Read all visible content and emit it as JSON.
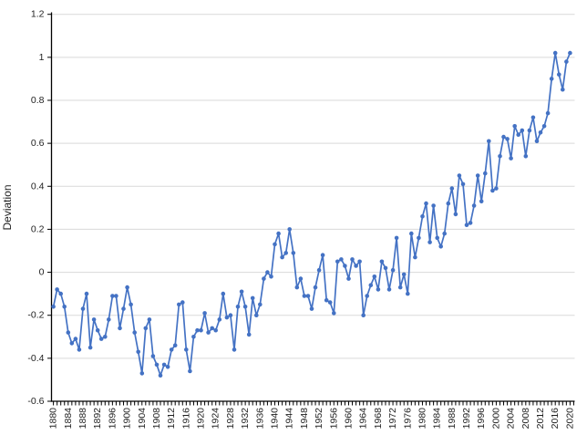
{
  "chart_data": {
    "type": "line",
    "title": "",
    "xlabel": "",
    "ylabel": "Deviation",
    "ylim": [
      -0.6,
      1.2
    ],
    "grid": "horizontal-only",
    "legend": "none",
    "marker": "circle",
    "line_color": "#4472C4",
    "x": [
      1880,
      1881,
      1882,
      1883,
      1884,
      1885,
      1886,
      1887,
      1888,
      1889,
      1890,
      1891,
      1892,
      1893,
      1894,
      1895,
      1896,
      1897,
      1898,
      1899,
      1900,
      1901,
      1902,
      1903,
      1904,
      1905,
      1906,
      1907,
      1908,
      1909,
      1910,
      1911,
      1912,
      1913,
      1914,
      1915,
      1916,
      1917,
      1918,
      1919,
      1920,
      1921,
      1922,
      1923,
      1924,
      1925,
      1926,
      1927,
      1928,
      1929,
      1930,
      1931,
      1932,
      1933,
      1934,
      1935,
      1936,
      1937,
      1938,
      1939,
      1940,
      1941,
      1942,
      1943,
      1944,
      1945,
      1946,
      1947,
      1948,
      1949,
      1950,
      1951,
      1952,
      1953,
      1954,
      1955,
      1956,
      1957,
      1958,
      1959,
      1960,
      1961,
      1962,
      1963,
      1964,
      1965,
      1966,
      1967,
      1968,
      1969,
      1970,
      1971,
      1972,
      1973,
      1974,
      1975,
      1976,
      1977,
      1978,
      1979,
      1980,
      1981,
      1982,
      1983,
      1984,
      1985,
      1986,
      1987,
      1988,
      1989,
      1990,
      1991,
      1992,
      1993,
      1994,
      1995,
      1996,
      1997,
      1998,
      1999,
      2000,
      2001,
      2002,
      2003,
      2004,
      2005,
      2006,
      2007,
      2008,
      2009,
      2010,
      2011,
      2012,
      2013,
      2014,
      2015,
      2016,
      2017,
      2018,
      2019,
      2020
    ],
    "values": [
      -0.16,
      -0.08,
      -0.1,
      -0.16,
      -0.28,
      -0.33,
      -0.31,
      -0.36,
      -0.17,
      -0.1,
      -0.35,
      -0.22,
      -0.27,
      -0.31,
      -0.3,
      -0.22,
      -0.11,
      -0.11,
      -0.26,
      -0.17,
      -0.07,
      -0.15,
      -0.28,
      -0.37,
      -0.47,
      -0.26,
      -0.22,
      -0.39,
      -0.43,
      -0.48,
      -0.43,
      -0.44,
      -0.36,
      -0.34,
      -0.15,
      -0.14,
      -0.36,
      -0.46,
      -0.3,
      -0.27,
      -0.27,
      -0.19,
      -0.28,
      -0.26,
      -0.27,
      -0.22,
      -0.1,
      -0.21,
      -0.2,
      -0.36,
      -0.16,
      -0.09,
      -0.16,
      -0.29,
      -0.12,
      -0.2,
      -0.15,
      -0.03,
      0.0,
      -0.02,
      0.13,
      0.18,
      0.07,
      0.09,
      0.2,
      0.09,
      -0.07,
      -0.03,
      -0.11,
      -0.11,
      -0.17,
      -0.07,
      0.01,
      0.08,
      -0.13,
      -0.14,
      -0.19,
      0.05,
      0.06,
      0.03,
      -0.03,
      0.06,
      0.03,
      0.05,
      -0.2,
      -0.11,
      -0.06,
      -0.02,
      -0.08,
      0.05,
      0.02,
      -0.08,
      0.01,
      0.16,
      -0.07,
      -0.01,
      -0.1,
      0.18,
      0.07,
      0.16,
      0.26,
      0.32,
      0.14,
      0.31,
      0.16,
      0.12,
      0.18,
      0.32,
      0.39,
      0.27,
      0.45,
      0.41,
      0.22,
      0.23,
      0.31,
      0.45,
      0.33,
      0.46,
      0.61,
      0.38,
      0.39,
      0.54,
      0.63,
      0.62,
      0.53,
      0.68,
      0.64,
      0.66,
      0.54,
      0.66,
      0.72,
      0.61,
      0.65,
      0.68,
      0.74,
      0.9,
      1.02,
      0.92,
      0.85,
      0.98,
      1.02
    ],
    "xtick_labels": [
      "1880",
      "1884",
      "1888",
      "1892",
      "1896",
      "1900",
      "1904",
      "1908",
      "1912",
      "1916",
      "1920",
      "1924",
      "1928",
      "1932",
      "1936",
      "1940",
      "1944",
      "1948",
      "1952",
      "1956",
      "1960",
      "1964",
      "1968",
      "1972",
      "1976",
      "1980",
      "1984",
      "1988",
      "1992",
      "1996",
      "2000",
      "2004",
      "2008",
      "2012",
      "2016",
      "2020"
    ],
    "ytick_labels": [
      "-0.6",
      "-0.4",
      "-0.2",
      "0",
      "0.2",
      "0.4",
      "0.6",
      "0.8",
      "1",
      "1.2"
    ]
  },
  "style": {
    "background": "#FFFFFF",
    "gridline_color": "#D9D9D9",
    "axis_color": "#000000",
    "text_color": "#1F1F1F",
    "series_color": "#4472C4"
  }
}
